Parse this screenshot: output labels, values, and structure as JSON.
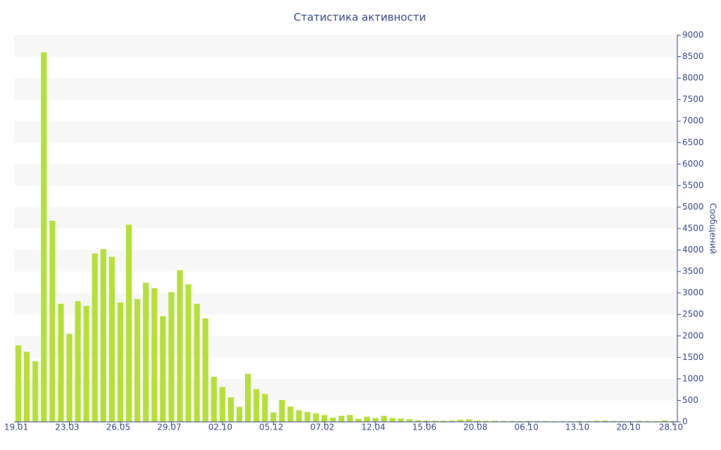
{
  "chart_data": {
    "type": "bar",
    "title": "Статистика активности",
    "y_label": "Сообщений",
    "categories": [
      "19.01",
      null,
      null,
      null,
      null,
      null,
      "23.03",
      null,
      null,
      null,
      null,
      null,
      "26.05",
      null,
      null,
      null,
      null,
      null,
      "29.07",
      null,
      null,
      null,
      null,
      null,
      "02.10",
      null,
      null,
      null,
      null,
      null,
      "05.12",
      null,
      null,
      null,
      null,
      null,
      "07.02",
      null,
      null,
      null,
      null,
      null,
      "12.04",
      null,
      null,
      null,
      null,
      null,
      "15.06",
      null,
      null,
      null,
      null,
      null,
      "20.08",
      null,
      null,
      null,
      null,
      null,
      "06.10",
      null,
      null,
      null,
      null,
      null,
      "13.10",
      null,
      null,
      null,
      null,
      null,
      "20.10",
      null,
      null,
      null,
      null,
      "28.10"
    ],
    "values": [
      1780,
      1630,
      1410,
      8600,
      4680,
      2750,
      2050,
      2810,
      2700,
      3920,
      4020,
      3840,
      2780,
      4590,
      2860,
      3240,
      3110,
      2460,
      3020,
      3530,
      3200,
      2750,
      2410,
      1050,
      810,
      570,
      350,
      1120,
      760,
      650,
      220,
      510,
      360,
      270,
      230,
      200,
      160,
      100,
      140,
      160,
      70,
      120,
      90,
      140,
      90,
      80,
      60,
      40,
      30,
      25,
      25,
      30,
      50,
      60,
      30,
      25,
      25,
      20,
      20,
      20,
      20,
      20,
      20,
      15,
      15,
      15,
      20,
      20,
      25,
      30,
      25,
      20,
      15,
      25,
      20,
      15,
      35,
      20
    ],
    "color": "#b5e03a",
    "ylim": [
      0,
      9000
    ],
    "yticks": [
      0,
      500,
      1000,
      1500,
      2000,
      2500,
      3000,
      3500,
      4000,
      4500,
      5000,
      5500,
      6000,
      6500,
      7000,
      7500,
      8000,
      8500,
      9000
    ],
    "y_axis_side": "right",
    "alternate_bands": true
  }
}
